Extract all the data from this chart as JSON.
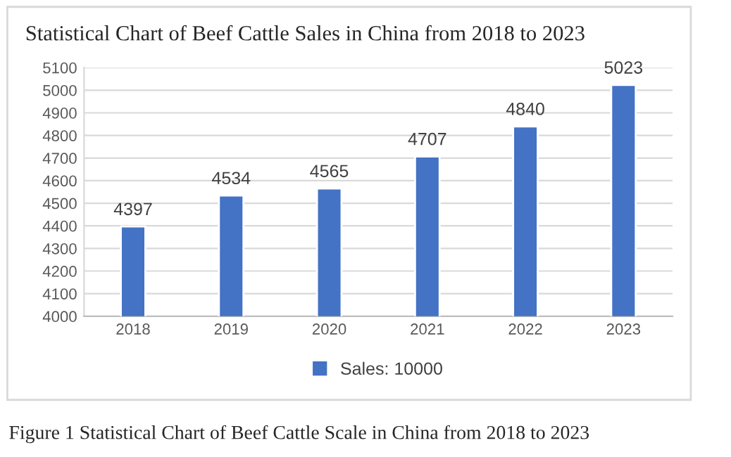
{
  "chart_data": {
    "type": "bar",
    "title": "Statistical Chart of Beef Cattle Sales in China from 2018 to 2023",
    "categories": [
      "2018",
      "2019",
      "2020",
      "2021",
      "2022",
      "2023"
    ],
    "series": [
      {
        "name": "Sales: 10000",
        "color": "#4472c4",
        "values": [
          4397,
          4534,
          4565,
          4707,
          4840,
          5023
        ]
      }
    ],
    "ylim": [
      4000,
      5100
    ],
    "yticks": [
      4000,
      4100,
      4200,
      4300,
      4400,
      4500,
      4600,
      4700,
      4800,
      4900,
      5000,
      5100
    ],
    "grid": "y",
    "legend": "bottom",
    "data_labels": true,
    "annotations": [
      "Figure 1 Statistical Chart of Beef Cattle Scale in China from 2018 to 2023"
    ]
  }
}
